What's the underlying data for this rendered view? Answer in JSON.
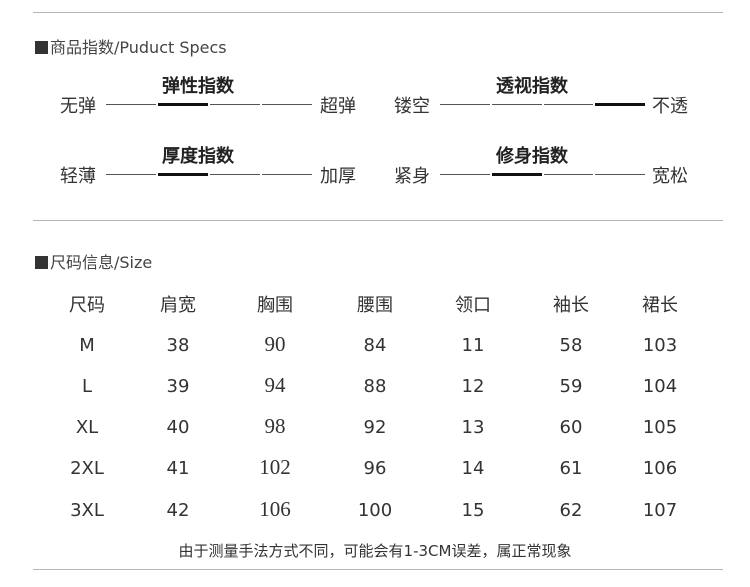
{
  "specs": {
    "title": "商品指数/Puduct Specs",
    "items": [
      {
        "title": "弹性指数",
        "left": "无弹",
        "right": "超弹",
        "active_index": 1
      },
      {
        "title": "透视指数",
        "left": "镂空",
        "right": "不透",
        "active_index": 3
      },
      {
        "title": "厚度指数",
        "left": "轻薄",
        "right": "加厚",
        "active_index": 1
      },
      {
        "title": "修身指数",
        "left": "紧身",
        "right": "宽松",
        "active_index": 1
      }
    ]
  },
  "size": {
    "title": "尺码信息/Size",
    "headers": [
      "尺码",
      "肩宽",
      "胸围",
      "腰围",
      "领口",
      "袖长",
      "裙长"
    ],
    "rows": [
      [
        "M",
        "38",
        "90",
        "84",
        "11",
        "58",
        "103"
      ],
      [
        "L",
        "39",
        "94",
        "88",
        "12",
        "59",
        "104"
      ],
      [
        "XL",
        "40",
        "98",
        "92",
        "13",
        "60",
        "105"
      ],
      [
        "2XL",
        "41",
        "102",
        "96",
        "14",
        "61",
        "106"
      ],
      [
        "3XL",
        "42",
        "106",
        "100",
        "15",
        "62",
        "107"
      ]
    ],
    "note": "由于测量手法方式不同，可能会有1-3CM误差，属正常现象"
  }
}
